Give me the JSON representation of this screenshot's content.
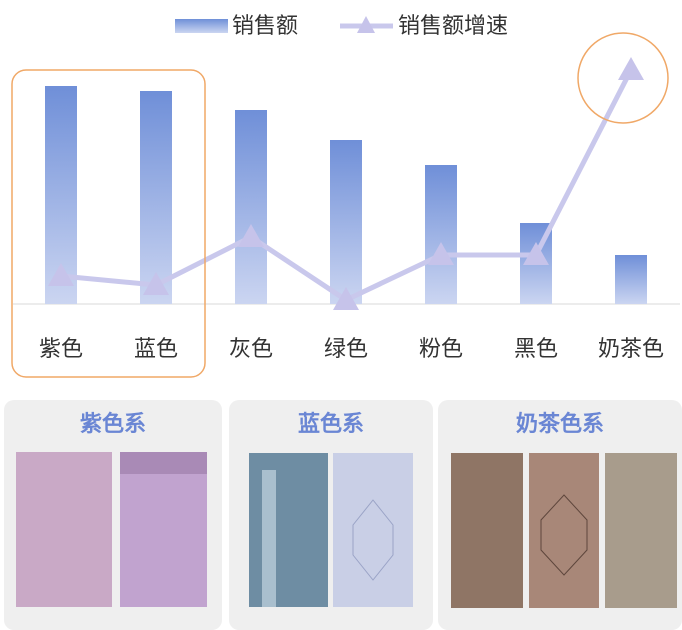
{
  "chart_data": {
    "type": "bar_line",
    "categories": [
      "紫色",
      "蓝色",
      "灰色",
      "绿色",
      "粉色",
      "黑色",
      "奶茶色"
    ],
    "series": [
      {
        "name": "销售额",
        "type": "bar",
        "color": "#6f8fd8",
        "values": [
          218,
          213,
          194,
          164,
          139,
          81,
          49
        ]
      },
      {
        "name": "销售额增速",
        "type": "line",
        "axis": "y2",
        "color": "#c9c8ec",
        "values": [
          28,
          19,
          67,
          4,
          49,
          49,
          234
        ]
      }
    ],
    "ylim": [
      0,
      240
    ],
    "y2lim": [
      0,
      240
    ]
  },
  "panels": [
    {
      "title": "紫色系"
    },
    {
      "title": "蓝色系"
    },
    {
      "title": "奶茶色系"
    }
  ]
}
